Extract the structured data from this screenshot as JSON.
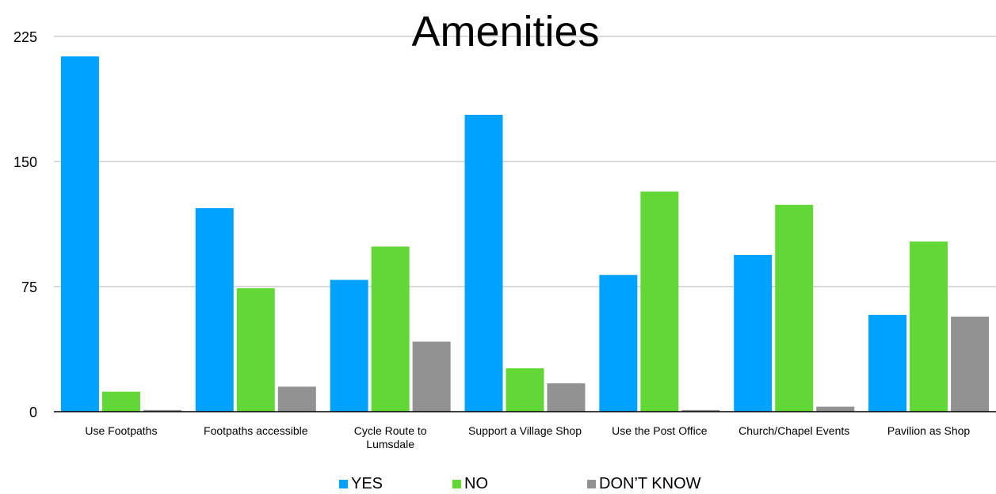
{
  "chart_data": {
    "type": "bar",
    "title": "Amenities",
    "xlabel": "",
    "ylabel": "",
    "ylim": [
      0,
      225
    ],
    "yticks": [
      0,
      75,
      150,
      225
    ],
    "grid": true,
    "legend_position": "bottom",
    "categories": [
      "Use Footpaths",
      "Footpaths accessible",
      "Cycle Route to Lumsdale",
      "Support a Village Shop",
      "Use the Post Office",
      "Church/Chapel Events",
      "Pavilion as Shop"
    ],
    "series": [
      {
        "name": "YES",
        "color": "#00a2ff",
        "values": [
          213,
          122,
          79,
          178,
          82,
          94,
          58
        ]
      },
      {
        "name": "NO",
        "color": "#61d836",
        "values": [
          12,
          74,
          99,
          26,
          132,
          124,
          102
        ]
      },
      {
        "name": "DON’T KNOW",
        "color": "#929292",
        "values": [
          1,
          15,
          42,
          17,
          1,
          3,
          57
        ]
      }
    ]
  }
}
